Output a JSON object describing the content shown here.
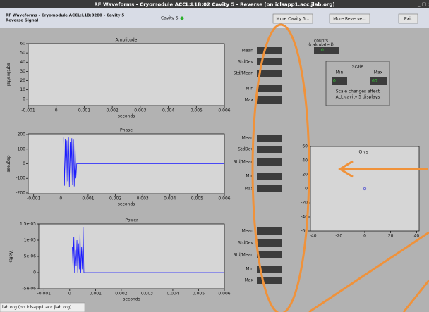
{
  "window": {
    "title": "RF Waveforms - Cryomodule ACCL:L1B:02 Cavity 5 - Reverse (on iclsapp1.acc.jlab.org)"
  },
  "header": {
    "title_line1": "RF Waveforms - Cryomodule ACCL:L1B:0280 - Cavity 5",
    "title_line2": "Reverse Signal",
    "cavity": "Cavity 5",
    "buttons": [
      "More Cavity 5...",
      "More Reverse...",
      "Exit"
    ]
  },
  "plots": [
    {
      "type": "line",
      "title": "Amplitude",
      "ylabel": "sqrt(watts)",
      "xlabel": "seconds",
      "color": "#1a1aff",
      "xlim": [
        -0.001,
        0.006
      ],
      "ylim": [
        -7,
        60
      ],
      "xticks": [
        -0.001,
        0,
        0.001,
        0.002,
        0.003,
        0.004,
        0.005,
        0.006
      ],
      "yticks": [
        60,
        50,
        40,
        30,
        20,
        10,
        0
      ],
      "x": [],
      "values": []
    },
    {
      "type": "line",
      "title": "Phase",
      "ylabel": "degrees",
      "xlabel": "seconds",
      "color": "#1a1aff",
      "xlim": [
        -0.0012,
        0.006
      ],
      "ylim": [
        -205,
        205
      ],
      "xticks": [
        -0.001,
        0,
        0.001,
        0.002,
        0.003,
        0.004,
        0.005,
        0.006
      ],
      "yticks": [
        200,
        100,
        0,
        -100,
        -200
      ],
      "x": [
        0.0001,
        0.00013,
        0.00016,
        0.00019,
        0.00022,
        0.00025,
        0.00028,
        0.00031,
        0.00034,
        0.00037,
        0.0004,
        0.00043,
        0.00046,
        0.00049,
        0.00052,
        0.00055,
        0.00058,
        0.006
      ],
      "values": [
        180,
        -150,
        170,
        -140,
        160,
        -120,
        180,
        -160,
        150,
        -130,
        175,
        -145,
        165,
        -155,
        140,
        -100,
        0,
        0
      ]
    },
    {
      "type": "line",
      "title": "Power",
      "ylabel": "Watts",
      "xlabel": "seconds",
      "color": "#1a1aff",
      "xlim": [
        -0.0012,
        0.006
      ],
      "ylim": [
        -5e-06,
        1.5e-05
      ],
      "xticks": [
        -0.001,
        0,
        0.001,
        0.002,
        0.003,
        0.004,
        0.005,
        0.006
      ],
      "yticks": [
        {
          "value": 1.5e-05,
          "label": "1.5e-05"
        },
        {
          "value": 1e-05,
          "label": "1e-05"
        },
        {
          "value": 5e-06,
          "label": "5e-06"
        },
        0,
        {
          "value": -5e-06,
          "label": "-5e-06"
        }
      ],
      "x": [
        0.0001,
        0.00013,
        0.00016,
        0.00019,
        0.00022,
        0.00025,
        0.00028,
        0.00031,
        0.00034,
        0.00037,
        0.0004,
        0.00043,
        0.00046,
        0.00049,
        0.00052,
        0.00055,
        0.00058,
        0.006
      ],
      "values": [
        8e-06,
        1e-06,
        1.1e-05,
        0,
        7e-06,
        2e-06,
        1e-05,
        0,
        9e-06,
        1e-06,
        1.25e-05,
        0,
        8e-06,
        1e-06,
        1.4e-05,
        0,
        0,
        0
      ]
    }
  ],
  "stats": [
    {
      "labels": [
        "Mean",
        "StdDev",
        "Std/Mean",
        "Min",
        "Max"
      ]
    },
    {
      "labels": [
        "Mean",
        "StdDev",
        "Std/Mean",
        "Min",
        "Max"
      ]
    },
    {
      "labels": [
        "Mean",
        "StdDev",
        "Std/Mean",
        "Min",
        "Max"
      ]
    }
  ],
  "counts": {
    "label_line1": "counts",
    "label_line2": "(calculated)",
    "value": "0"
  },
  "scale": {
    "title": "Scale",
    "min_label": "Min",
    "max_label": "Max",
    "min": "0",
    "max": "60",
    "note_line1": "Scale changes affect",
    "note_line2": "ALL cavity 5 displays"
  },
  "qvsi": {
    "type": "scatter",
    "title": "Q vs I",
    "color": "#3333cc",
    "xlim": [
      -42,
      42
    ],
    "ylim": [
      -60,
      60
    ],
    "xticks": [
      -40,
      -20,
      0,
      20,
      40
    ],
    "yticks": [
      60,
      40,
      20,
      0,
      -20,
      -40,
      -60
    ],
    "x": [
      0
    ],
    "values": [
      0
    ]
  },
  "status": "lab.org (on iclsapp1.acc.jlab.org)"
}
